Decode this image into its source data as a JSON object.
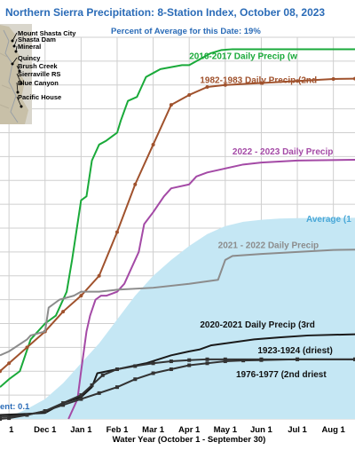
{
  "chart_data": {
    "type": "line",
    "title": "Northern Sierra Precipitation: 8-Station Index, October 08, 2023",
    "subtitle": "Percent of Average for this Date: 19%",
    "xlabel": "Water Year (October 1 - September 30)",
    "x_ticks": [
      "1",
      "Dec 1",
      "Jan 1",
      "Feb 1",
      "Mar 1",
      "Apr 1",
      "May 1",
      "Jun 1",
      "Jul 1",
      "Aug 1"
    ],
    "x_tick_months": [
      1,
      2,
      3,
      4,
      5,
      6,
      7,
      8,
      9,
      10
    ],
    "x_range_months": [
      0.75,
      10.6
    ],
    "y_range": [
      0,
      96
    ],
    "grid": true,
    "current_label": "ent: 0.1",
    "map_labels": [
      "Mount Shasta City",
      "Shasta Dam",
      "Mineral",
      "Quincy",
      "Brush Creek",
      "Sierraville RS",
      "Blue Canyon",
      "Pacific House"
    ],
    "average_band": {
      "label": "Average (1",
      "color": "#c5e7f4",
      "points": [
        [
          0.75,
          0
        ],
        [
          1,
          0.5
        ],
        [
          1.5,
          2.5
        ],
        [
          2,
          5
        ],
        [
          2.5,
          9
        ],
        [
          3,
          14
        ],
        [
          3.5,
          19
        ],
        [
          4,
          25
        ],
        [
          4.5,
          31
        ],
        [
          5,
          36
        ],
        [
          5.5,
          40
        ],
        [
          6,
          43.5
        ],
        [
          6.5,
          46.5
        ],
        [
          7,
          48.5
        ],
        [
          7.5,
          49.6
        ],
        [
          8,
          50.1
        ],
        [
          8.5,
          50.4
        ],
        [
          9,
          50.5
        ],
        [
          10.6,
          50.6
        ]
      ]
    },
    "series": [
      {
        "name": "2016-2017 Daily Precip (w",
        "color": "#1aaa3a",
        "label_pos": [
          6.0,
          90.5
        ],
        "points": [
          [
            0.75,
            8
          ],
          [
            1,
            10
          ],
          [
            1.3,
            12
          ],
          [
            1.6,
            20
          ],
          [
            1.8,
            22
          ],
          [
            2.0,
            24
          ],
          [
            2.3,
            26
          ],
          [
            2.6,
            32
          ],
          [
            2.75,
            40
          ],
          [
            3.0,
            55
          ],
          [
            3.15,
            56
          ],
          [
            3.3,
            65
          ],
          [
            3.5,
            69
          ],
          [
            3.7,
            70
          ],
          [
            4.0,
            72
          ],
          [
            4.1,
            75
          ],
          [
            4.3,
            80
          ],
          [
            4.55,
            81
          ],
          [
            4.65,
            83
          ],
          [
            4.8,
            86
          ],
          [
            5.0,
            87
          ],
          [
            5.2,
            88
          ],
          [
            5.5,
            88.5
          ],
          [
            5.8,
            89
          ],
          [
            6.0,
            89
          ],
          [
            6.3,
            90.5
          ],
          [
            6.6,
            92
          ],
          [
            6.9,
            92.8
          ],
          [
            7.2,
            93
          ],
          [
            10.6,
            93
          ]
        ]
      },
      {
        "name": "1982-1983 Daily Precip (2nd",
        "color": "#a0522d",
        "label_pos": [
          6.3,
          84.5
        ],
        "points": [
          [
            0.75,
            12
          ],
          [
            1,
            14
          ],
          [
            1.5,
            18
          ],
          [
            2,
            22
          ],
          [
            2.5,
            27
          ],
          [
            3,
            31
          ],
          [
            3.5,
            36
          ],
          [
            4,
            47
          ],
          [
            4.5,
            59
          ],
          [
            5,
            69
          ],
          [
            5.5,
            79
          ],
          [
            6,
            81.5
          ],
          [
            6.5,
            83.5
          ],
          [
            7,
            84
          ],
          [
            8,
            84.5
          ],
          [
            9,
            85
          ],
          [
            10,
            85.5
          ],
          [
            10.6,
            85.6
          ]
        ]
      },
      {
        "name": "2022 - 2023 Daily Precip",
        "color": "#a44aa6",
        "label_pos": [
          7.2,
          66.5
        ],
        "points": [
          [
            2.65,
            0
          ],
          [
            2.9,
            5
          ],
          [
            3.0,
            12
          ],
          [
            3.15,
            22
          ],
          [
            3.25,
            26
          ],
          [
            3.4,
            30
          ],
          [
            3.55,
            31
          ],
          [
            3.7,
            31
          ],
          [
            4.0,
            32
          ],
          [
            4.2,
            34
          ],
          [
            4.5,
            40
          ],
          [
            4.6,
            42
          ],
          [
            4.75,
            49
          ],
          [
            5.0,
            52
          ],
          [
            5.3,
            56
          ],
          [
            5.5,
            58
          ],
          [
            6.0,
            59
          ],
          [
            6.2,
            61
          ],
          [
            6.5,
            62
          ],
          [
            7.0,
            63
          ],
          [
            7.5,
            64
          ],
          [
            8,
            64.5
          ],
          [
            9,
            65
          ],
          [
            10.6,
            65.2
          ]
        ]
      },
      {
        "name": "2021 - 2022 Daily Precip",
        "color": "#8c8c8c",
        "label_pos": [
          6.8,
          43
        ],
        "points": [
          [
            0.75,
            16
          ],
          [
            1,
            17
          ],
          [
            1.5,
            20
          ],
          [
            1.6,
            21
          ],
          [
            2.0,
            22
          ],
          [
            2.1,
            28
          ],
          [
            2.4,
            30
          ],
          [
            2.8,
            31
          ],
          [
            3.0,
            32
          ],
          [
            3.5,
            32
          ],
          [
            4,
            32.5
          ],
          [
            5,
            33
          ],
          [
            6,
            34
          ],
          [
            6.8,
            35
          ],
          [
            7.0,
            40
          ],
          [
            7.2,
            41
          ],
          [
            8,
            41.5
          ],
          [
            9,
            42
          ],
          [
            10,
            42.5
          ],
          [
            10.6,
            42.6
          ]
        ]
      },
      {
        "name": "2020-2021 Daily Precip (3rd",
        "color": "#1a1a1a",
        "label_pos": [
          6.3,
          23
        ],
        "points": [
          [
            0.75,
            1
          ],
          [
            1.3,
            1.2
          ],
          [
            2,
            1.5
          ],
          [
            2.2,
            2.5
          ],
          [
            2.5,
            4
          ],
          [
            3.0,
            5.5
          ],
          [
            3.3,
            8
          ],
          [
            3.45,
            11.5
          ],
          [
            4.0,
            12.5
          ],
          [
            4.8,
            14
          ],
          [
            5.5,
            16
          ],
          [
            6.0,
            17
          ],
          [
            6.3,
            17.5
          ],
          [
            6.6,
            18.5
          ],
          [
            7,
            19
          ],
          [
            7.8,
            20
          ],
          [
            8.5,
            20.5
          ],
          [
            9.3,
            21
          ],
          [
            10.6,
            21.3
          ]
        ]
      },
      {
        "name": "1923-1924 (driest)",
        "color": "#333333",
        "label_pos": [
          7.9,
          16.5
        ],
        "points": [
          [
            0.75,
            0.5
          ],
          [
            1.5,
            1
          ],
          [
            2,
            2
          ],
          [
            2.5,
            4
          ],
          [
            3.0,
            6
          ],
          [
            3.3,
            8.5
          ],
          [
            3.6,
            11
          ],
          [
            4.0,
            12.5
          ],
          [
            4.5,
            13.3
          ],
          [
            5,
            14
          ],
          [
            5.5,
            14.5
          ],
          [
            6,
            14.8
          ],
          [
            6.5,
            15
          ],
          [
            7,
            15
          ],
          [
            8,
            15
          ],
          [
            9,
            15
          ],
          [
            10.6,
            15
          ]
        ],
        "markers": true
      },
      {
        "name": "1976-1977 (2nd driest",
        "color": "#333333",
        "label_pos": [
          7.3,
          10.5
        ],
        "points": [
          [
            0.75,
            0
          ],
          [
            1,
            0.2
          ],
          [
            1.5,
            1
          ],
          [
            2,
            2
          ],
          [
            2.5,
            3.5
          ],
          [
            3,
            5
          ],
          [
            3.5,
            6.5
          ],
          [
            4,
            8
          ],
          [
            4.5,
            10
          ],
          [
            5,
            11.5
          ],
          [
            5.5,
            12.5
          ],
          [
            6,
            13.5
          ],
          [
            6.5,
            14
          ],
          [
            7,
            14.5
          ],
          [
            7.5,
            14.7
          ],
          [
            8,
            14.8
          ],
          [
            9,
            15
          ],
          [
            10.6,
            15
          ]
        ],
        "markers": true
      }
    ]
  }
}
